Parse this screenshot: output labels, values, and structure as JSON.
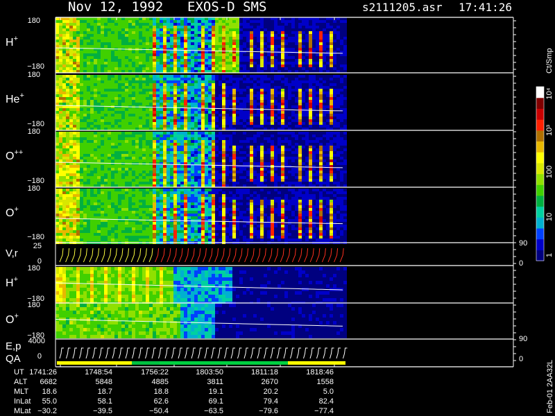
{
  "header": {
    "date": "Nov 12, 1992",
    "instrument": "EXOS-D SMS",
    "file": "s2111205.asr",
    "time": "17:41:26"
  },
  "colorbar": {
    "unit": "Ct/Smp",
    "labels": [
      "1",
      "10",
      "100",
      "10³",
      "10⁴"
    ],
    "colors": [
      "#00007f",
      "#0000c8",
      "#0040ff",
      "#00b0d0",
      "#00d0a0",
      "#00b040",
      "#40d000",
      "#90e000",
      "#d8e800",
      "#ffff00",
      "#e8b800",
      "#b07000",
      "#ff2000",
      "#c80000",
      "#800000",
      "#ffffff"
    ]
  },
  "panels": {
    "p1": {
      "label": "H",
      "sup": "+",
      "top": "180",
      "bottom": "−180"
    },
    "p2": {
      "label": "He",
      "sup": "+",
      "top": "180",
      "bottom": "−180"
    },
    "p3": {
      "label": "O",
      "sup": "++",
      "top": "180",
      "bottom": "−180"
    },
    "p4": {
      "label": "O",
      "sup": "+",
      "top": "180",
      "bottom": "−180"
    },
    "vr": {
      "label": "V,r",
      "top": "25",
      "bottom": "0",
      "right_top": "90",
      "right_bottom": "0"
    },
    "p6": {
      "label": "H",
      "sup": "+",
      "top": "180",
      "bottom": "−180"
    },
    "p7": {
      "label": "O",
      "sup": "+",
      "top": "180",
      "bottom": "−180"
    },
    "ep": {
      "label": "E,p",
      "top": "4000",
      "bottom": "0",
      "right_top": "90",
      "right_bottom": "0",
      "qa": "QA"
    }
  },
  "ephemeris": {
    "rows": [
      {
        "name": "UT",
        "values": [
          "1741:26",
          "1748:54",
          "1756:22",
          "1803:50",
          "1811:18",
          "1818:46"
        ]
      },
      {
        "name": "ALT",
        "values": [
          "6682",
          "5848",
          "4885",
          "3811",
          "2670",
          "1558"
        ]
      },
      {
        "name": "MLT",
        "values": [
          "18.6",
          "18.7",
          "18.8",
          "19.1",
          "20.2",
          "5.0"
        ]
      },
      {
        "name": "InLat",
        "values": [
          "55.0",
          "58.1",
          "62.6",
          "69.1",
          "79.4",
          "82.4"
        ]
      },
      {
        "name": "MLat",
        "values": [
          "−30.2",
          "−39.5",
          "−50.4",
          "−63.5",
          "−79.6",
          "−77.4"
        ]
      }
    ]
  },
  "footer": {
    "version": "Feb-01 2AA32L"
  },
  "chart_data": {
    "type": "heatmap",
    "title": "Nov 12, 1992   EXOS-D SMS",
    "x_ticks": [
      "1741:26",
      "1748:54",
      "1756:22",
      "1803:50",
      "1811:18",
      "1818:46"
    ],
    "colorbar_scale": "log",
    "colorbar_range": [
      1,
      10000
    ],
    "series": [
      {
        "name": "H+",
        "ylim": [
          -180,
          180
        ]
      },
      {
        "name": "He+",
        "ylim": [
          -180,
          180
        ]
      },
      {
        "name": "O++",
        "ylim": [
          -180,
          180
        ]
      },
      {
        "name": "O+",
        "ylim": [
          -180,
          180
        ]
      },
      {
        "name": "V,r",
        "ylim": [
          0,
          25
        ],
        "right_ylim": [
          0,
          90
        ]
      },
      {
        "name": "H+",
        "ylim": [
          -180,
          180
        ]
      },
      {
        "name": "O+",
        "ylim": [
          -180,
          180
        ]
      },
      {
        "name": "E,p",
        "ylim": [
          0,
          4000
        ],
        "right_ylim": [
          0,
          90
        ]
      }
    ]
  }
}
